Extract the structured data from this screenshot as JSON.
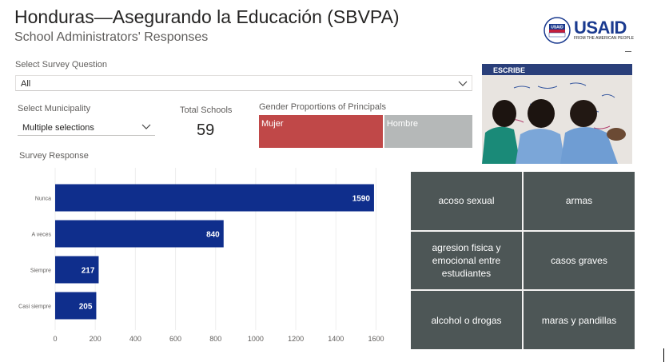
{
  "header": {
    "title": "Honduras—Asegurando la Educación (SBVPA)",
    "subtitle": "School Administrators' Responses"
  },
  "logo": {
    "word": "USAID",
    "tagline": "FROM THE AMERICAN PEOPLE",
    "seal_text": "USAID",
    "color": "#1a3a8f"
  },
  "filters": {
    "survey_question": {
      "label": "Select Survey Question",
      "value": "All"
    },
    "municipality": {
      "label": "Select Municipality",
      "value": "Multiple selections"
    }
  },
  "kpi": {
    "label": "Total Schools",
    "value": "59"
  },
  "gender": {
    "title": "Gender Proportions of Principals",
    "segments": [
      {
        "label": "Mujer",
        "share": 0.58,
        "color": "#c04848"
      },
      {
        "label": "Hombre",
        "share": 0.42,
        "color": "#b5b8b8"
      }
    ]
  },
  "chart_data": {
    "type": "bar",
    "orientation": "horizontal",
    "title": "Survey Response",
    "categories": [
      "Nunca",
      "A veces",
      "Siempre",
      "Casi siempre"
    ],
    "values": [
      1590,
      840,
      217,
      205
    ],
    "xticks": [
      0,
      200,
      400,
      600,
      800,
      1000,
      1200,
      1400,
      1600
    ],
    "xlim": [
      0,
      1650
    ],
    "bar_color": "#0f2e8c",
    "grid": "vertical"
  },
  "tiles": {
    "color": "#4d5656",
    "items": [
      "acoso sexual",
      "armas",
      "agresion fisica y emocional entre estudiantes",
      "casos graves",
      "alcohol o drogas",
      "maras y pandillas"
    ]
  },
  "photo": {
    "board_text": "ESCRIBE"
  }
}
